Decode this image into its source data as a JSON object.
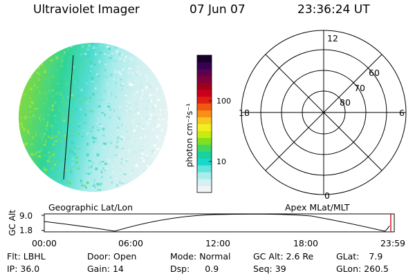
{
  "header": {
    "title": "Ultraviolet Imager",
    "date": "07 Jun 07",
    "time": "23:36:24 UT"
  },
  "colorbar": {
    "label": "photon cm⁻²s⁻¹",
    "ticks": [
      "100",
      "10"
    ],
    "scale": "log",
    "colors": [
      "#f0f4f4",
      "#d4f0f0",
      "#a8ecec",
      "#60e4dc",
      "#18d8c8",
      "#18d0a0",
      "#40d860",
      "#80e020",
      "#c8ec10",
      "#f0f020",
      "#f8c820",
      "#f89018",
      "#f05a10",
      "#e02010",
      "#c8001c",
      "#a0001c",
      "#80003c",
      "#5c0050",
      "#380050",
      "#18002c"
    ]
  },
  "polar": {
    "mlt_labels": [
      "12",
      "18",
      "6",
      "0"
    ],
    "lat_labels": [
      "60",
      "70",
      "80"
    ]
  },
  "labels": {
    "geo": "Geographic Lat/Lon",
    "apex": "Apex MLat/MLT"
  },
  "altitude_plot": {
    "axis_label": "GC Alt",
    "y_ticks": [
      "9.0",
      "1.8"
    ],
    "x_ticks": [
      "00:00",
      "06:00",
      "12:00",
      "18:00",
      "23:59"
    ]
  },
  "info": {
    "row1": [
      {
        "label": "Flt:",
        "value": "LBHL"
      },
      {
        "label": "Door:",
        "value": "Open"
      },
      {
        "label": "Mode:",
        "value": "Normal"
      },
      {
        "label": "GC Alt:",
        "value": "2.6 Re"
      },
      {
        "label": "GLat:",
        "value": "7.9"
      }
    ],
    "row2": [
      {
        "label": "IP:",
        "value": "36.0"
      },
      {
        "label": "Gain:",
        "value": "14"
      },
      {
        "label": "Dsp:",
        "value": "0.9"
      },
      {
        "label": "Seq:",
        "value": "39"
      },
      {
        "label": "GLon:",
        "value": "260.5"
      }
    ]
  }
}
